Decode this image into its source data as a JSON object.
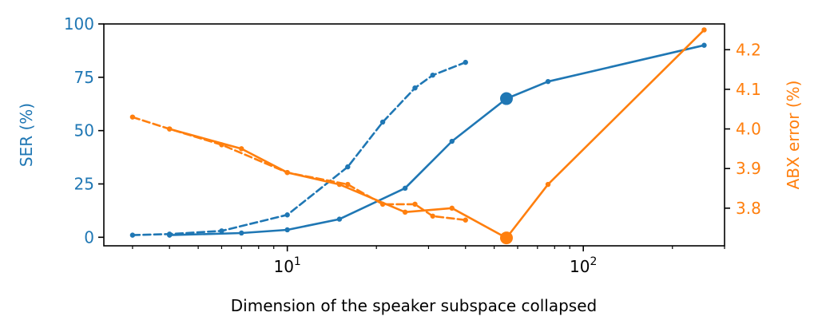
{
  "chart_data": {
    "type": "line",
    "title": "",
    "xlabel": "Dimension of the speaker subspace collapsed",
    "xscale": "log",
    "xlim": [
      2.4,
      300
    ],
    "x_tick_labels": [
      {
        "value": 10,
        "base": "10",
        "exp": "1"
      },
      {
        "value": 100,
        "base": "10",
        "exp": "2"
      }
    ],
    "y_left": {
      "label": "SER (%)",
      "lim": [
        -4,
        100
      ],
      "ticks": [
        0,
        25,
        50,
        75,
        100
      ],
      "color": "#1f77b4"
    },
    "y_right": {
      "label": "ABX error (%)",
      "lim": [
        3.705,
        4.265
      ],
      "ticks": [
        3.8,
        3.9,
        4.0,
        4.1,
        4.2
      ],
      "tick_labels": [
        "3.8",
        "3.9",
        "4.0",
        "4.1",
        "4.2"
      ],
      "color": "#ff7f0e"
    },
    "series": [
      {
        "axis": "left",
        "color": "#1f77b4",
        "style": "solid",
        "x": [
          4,
          7,
          10,
          15,
          25,
          36,
          55,
          76,
          256
        ],
        "y": [
          1,
          2,
          3.5,
          8.5,
          23,
          45,
          65,
          73,
          90
        ],
        "highlight": {
          "x": 55,
          "y": 65
        }
      },
      {
        "axis": "left",
        "color": "#1f77b4",
        "style": "dashed",
        "x": [
          3,
          4,
          6,
          10,
          16,
          21,
          27,
          31,
          40
        ],
        "y": [
          1,
          1.5,
          3,
          10.5,
          33,
          54,
          70,
          76,
          82
        ]
      },
      {
        "axis": "right",
        "color": "#ff7f0e",
        "style": "solid",
        "x": [
          4,
          7,
          10,
          15,
          25,
          36,
          55,
          76,
          256
        ],
        "y": [
          4.0,
          3.95,
          3.89,
          3.86,
          3.79,
          3.8,
          3.725,
          3.86,
          4.25
        ],
        "highlight": {
          "x": 55,
          "y": 3.725
        }
      },
      {
        "axis": "right",
        "color": "#ff7f0e",
        "style": "dashed",
        "x": [
          3,
          4,
          6,
          10,
          16,
          21,
          27,
          31,
          40
        ],
        "y": [
          4.03,
          4.0,
          3.96,
          3.89,
          3.86,
          3.81,
          3.81,
          3.78,
          3.77
        ]
      }
    ]
  }
}
